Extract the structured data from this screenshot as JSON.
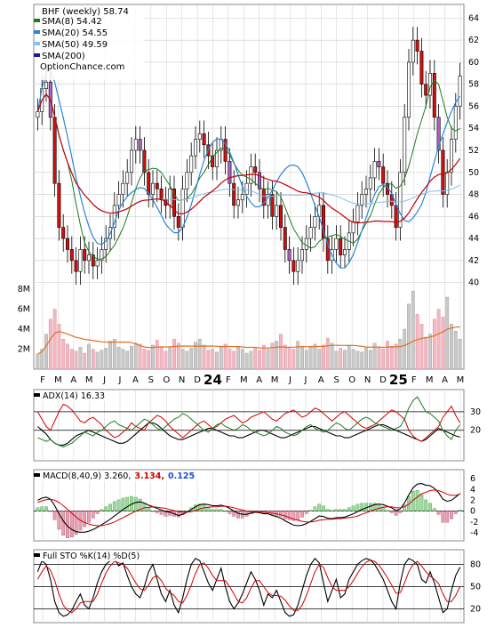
{
  "chart_data": [
    {
      "type": "candlestick",
      "panel": "price",
      "title": "BHF (weekly) 58.74",
      "watermark": "OptionChance.com",
      "legend": [
        {
          "label": "SMA(8) 54.42",
          "color": "#1f7a1f"
        },
        {
          "label": "SMA(20) 54.55",
          "color": "#2a86d8"
        },
        {
          "label": "SMA(50) 49.59",
          "color": "#7fc3f0"
        },
        {
          "label": "SMA(200)",
          "color": "#1a1aa0"
        }
      ],
      "legend_placement": "top-left",
      "yaxis_ticks": [
        40,
        42,
        44,
        46,
        48,
        50,
        52,
        54,
        56,
        58,
        60,
        62,
        64
      ],
      "ylim": [
        39,
        65
      ],
      "x_tick_labels": [
        "F",
        "M",
        "A",
        "M",
        "J",
        "J",
        "A",
        "S",
        "O",
        "N",
        "D",
        "24",
        "F",
        "M",
        "A",
        "M",
        "J",
        "J",
        "A",
        "S",
        "O",
        "N",
        "D",
        "25",
        "F",
        "M",
        "A",
        "M"
      ],
      "grid": true,
      "close": [
        55.5,
        57.6,
        58.2,
        55.0,
        49.0,
        45.0,
        44.0,
        43.0,
        42.0,
        41.0,
        43.0,
        42.0,
        42.5,
        41.5,
        42.0,
        43.0,
        44.0,
        45.0,
        47.0,
        48.0,
        49.0,
        50.0,
        52.0,
        53.0,
        52.0,
        50.0,
        48.0,
        49.0,
        48.5,
        47.5,
        47.0,
        48.5,
        46.0,
        45.0,
        48.5,
        50.0,
        51.5,
        53.0,
        53.5,
        52.5,
        51.5,
        50.5,
        52.0,
        53.0,
        51.0,
        49.0,
        47.0,
        47.5,
        48.0,
        49.0,
        50.5,
        50.0,
        48.5,
        47.0,
        48.0,
        46.0,
        47.0,
        45.0,
        43.0,
        42.0,
        41.0,
        42.0,
        43.0,
        44.0,
        45.0,
        46.0,
        47.0,
        44.0,
        42.0,
        43.0,
        44.0,
        42.5,
        43.0,
        44.5,
        45.5,
        47.0,
        48.0,
        48.5,
        49.5,
        51.0,
        50.5,
        49.0,
        48.0,
        47.0,
        45.0,
        50.0,
        55.0,
        60.0,
        62.0,
        61.0,
        58.0,
        57.0,
        59.0,
        55.0,
        52.0,
        48.0,
        50.0,
        53.0,
        56.0,
        58.74
      ],
      "series_labels": [
        "SMA(8) 54.42",
        "SMA(20) 54.55",
        "SMA(50) 49.59",
        "SMA(200)"
      ]
    },
    {
      "type": "bar",
      "panel": "volume",
      "yaxis_ticks": [
        "2M",
        "4M",
        "6M",
        "8M"
      ],
      "ylim_millions": [
        0,
        8
      ],
      "values_millions": [
        1.5,
        2.0,
        3.5,
        5.0,
        6.0,
        4.5,
        3.0,
        2.5,
        2.0,
        1.8,
        2.2,
        1.6,
        2.5,
        2.0,
        1.7,
        1.9,
        2.1,
        2.8,
        3.0,
        2.2,
        2.0,
        1.8,
        2.3,
        2.6,
        2.5,
        2.0,
        1.9,
        2.4,
        2.9,
        2.2,
        1.8,
        2.2,
        3.0,
        2.6,
        2.0,
        1.8,
        2.1,
        2.7,
        3.0,
        2.4,
        1.9,
        2.0,
        1.7,
        2.2,
        2.5,
        2.0,
        1.8,
        2.3,
        2.0,
        1.6,
        1.8,
        2.2,
        1.9,
        2.4,
        2.0,
        2.6,
        2.8,
        3.5,
        2.4,
        2.2,
        2.0,
        2.8,
        2.2,
        1.9,
        2.3,
        2.5,
        2.0,
        2.4,
        3.1,
        2.6,
        1.8,
        2.1,
        1.9,
        2.4,
        2.0,
        1.8,
        1.7,
        2.1,
        1.9,
        2.6,
        2.2,
        2.0,
        2.8,
        2.3,
        2.5,
        3.0,
        4.0,
        6.5,
        7.8,
        5.5,
        4.5,
        3.2,
        3.5,
        5.0,
        6.0,
        5.2,
        7.2,
        4.5,
        3.8,
        3.0
      ]
    },
    {
      "type": "line",
      "panel": "ADX",
      "label": "ADX(14) 16.33",
      "yaxis_ticks": [
        20,
        30
      ],
      "ylim": [
        5,
        40
      ],
      "series": [
        {
          "color": "#000000",
          "values": [
            22,
            20,
            18,
            15,
            13,
            12,
            12,
            13,
            15,
            17,
            18,
            19,
            20,
            19,
            18,
            17,
            16,
            15,
            14,
            13,
            13,
            14,
            16,
            18,
            20,
            22,
            24,
            24,
            23,
            21,
            19,
            17,
            16,
            15,
            15,
            16,
            17,
            18,
            19,
            20,
            21,
            21,
            20,
            19,
            18,
            17,
            17,
            16,
            16,
            17,
            18,
            19,
            20,
            20,
            19,
            18,
            17,
            16,
            16,
            17,
            18,
            19,
            20,
            21,
            22,
            22,
            21,
            20,
            19,
            18,
            17,
            17,
            16,
            16,
            17,
            18,
            19,
            20,
            21,
            22,
            23,
            23,
            22,
            21,
            20,
            19,
            18,
            17,
            16,
            15,
            14,
            15,
            17,
            19,
            21,
            20,
            19,
            18,
            17,
            16.33
          ]
        },
        {
          "color": "#d00000",
          "values": [
            30,
            26,
            22,
            20,
            25,
            30,
            34,
            33,
            31,
            28,
            25,
            24,
            26,
            27,
            25,
            23,
            20,
            18,
            16,
            17,
            19,
            21,
            24,
            22,
            21,
            20,
            24,
            26,
            28,
            27,
            25,
            22,
            20,
            18,
            16,
            18,
            20,
            22,
            24,
            25,
            23,
            21,
            22,
            24,
            26,
            27,
            28,
            26,
            24,
            25,
            27,
            28,
            29,
            30,
            28,
            26,
            25,
            27,
            29,
            30,
            31,
            29,
            27,
            28,
            30,
            32,
            31,
            29,
            27,
            25,
            27,
            29,
            30,
            28,
            26,
            24,
            22,
            21,
            22,
            23,
            25,
            27,
            29,
            31,
            30,
            28,
            26,
            20,
            17,
            15,
            14,
            16,
            18,
            20,
            22,
            27,
            30,
            33,
            28,
            24
          ]
        },
        {
          "color": "#1f7a1f",
          "values": [
            16,
            15,
            14,
            15,
            13,
            12,
            11,
            12,
            13,
            15,
            17,
            19,
            18,
            17,
            19,
            20,
            22,
            24,
            25,
            23,
            22,
            21,
            20,
            22,
            24,
            26,
            25,
            23,
            21,
            20,
            22,
            24,
            26,
            27,
            29,
            28,
            26,
            24,
            22,
            20,
            19,
            21,
            23,
            24,
            22,
            21,
            20,
            21,
            23,
            22,
            20,
            19,
            18,
            17,
            18,
            20,
            22,
            21,
            19,
            18,
            17,
            18,
            20,
            22,
            23,
            21,
            20,
            19,
            20,
            22,
            24,
            23,
            21,
            20,
            22,
            24,
            26,
            27,
            26,
            24,
            23,
            22,
            21,
            20,
            21,
            22,
            26,
            32,
            36,
            38,
            34,
            30,
            29,
            27,
            25,
            20,
            17,
            15,
            20,
            23
          ]
        }
      ]
    },
    {
      "type": "line",
      "panel": "MACD",
      "label": "MACD(8,40,9) 3.260,",
      "signal_label": "3.134,",
      "histogram_label": "0.125",
      "yaxis_ticks": [
        -4,
        -2,
        0,
        2,
        4,
        6
      ],
      "ylim": [
        -5,
        7
      ],
      "macd": [
        2.0,
        2.4,
        2.6,
        2.2,
        1.0,
        -0.5,
        -1.8,
        -2.8,
        -3.4,
        -3.8,
        -3.9,
        -3.9,
        -3.7,
        -3.4,
        -3.0,
        -2.5,
        -2.0,
        -1.5,
        -0.9,
        -0.3,
        0.3,
        0.8,
        1.3,
        1.6,
        1.7,
        1.5,
        1.1,
        0.8,
        0.5,
        0.2,
        -0.1,
        -0.2,
        -0.5,
        -0.8,
        -0.6,
        -0.2,
        0.3,
        0.8,
        1.2,
        1.3,
        1.2,
        1.0,
        1.0,
        1.1,
        0.9,
        0.5,
        0.0,
        -0.4,
        -0.6,
        -0.6,
        -0.4,
        -0.2,
        -0.3,
        -0.5,
        -0.5,
        -0.8,
        -1.0,
        -1.3,
        -1.8,
        -2.2,
        -2.6,
        -2.7,
        -2.6,
        -2.3,
        -1.9,
        -1.4,
        -0.9,
        -1.0,
        -1.3,
        -1.4,
        -1.2,
        -1.2,
        -1.1,
        -0.8,
        -0.5,
        -0.1,
        0.3,
        0.6,
        0.9,
        1.2,
        1.3,
        1.2,
        0.9,
        0.6,
        0.1,
        0.4,
        1.5,
        3.0,
        4.3,
        5.0,
        5.1,
        4.8,
        4.7,
        4.2,
        3.4,
        2.2,
        1.8,
        2.0,
        2.6,
        3.26
      ],
      "signal": [
        1.6,
        1.9,
        2.1,
        2.2,
        2.0,
        1.6,
        1.0,
        0.3,
        -0.4,
        -1.1,
        -1.7,
        -2.1,
        -2.4,
        -2.6,
        -2.7,
        -2.7,
        -2.5,
        -2.3,
        -2.0,
        -1.6,
        -1.2,
        -0.8,
        -0.4,
        0.0,
        0.3,
        0.6,
        0.7,
        0.8,
        0.7,
        0.6,
        0.5,
        0.3,
        0.1,
        -0.1,
        -0.2,
        -0.2,
        -0.1,
        0.1,
        0.4,
        0.6,
        0.7,
        0.8,
        0.8,
        0.9,
        0.9,
        0.8,
        0.6,
        0.4,
        0.2,
        0.0,
        -0.1,
        -0.1,
        -0.2,
        -0.2,
        -0.3,
        -0.4,
        -0.5,
        -0.7,
        -0.9,
        -1.2,
        -1.5,
        -1.7,
        -1.9,
        -2.0,
        -2.0,
        -1.9,
        -1.7,
        -1.6,
        -1.5,
        -1.5,
        -1.4,
        -1.4,
        -1.3,
        -1.2,
        -1.1,
        -0.9,
        -0.6,
        -0.3,
        0.0,
        0.3,
        0.5,
        0.7,
        0.8,
        0.8,
        0.6,
        0.6,
        0.8,
        1.3,
        2.0,
        2.6,
        3.2,
        3.5,
        3.8,
        3.9,
        3.8,
        3.5,
        3.1,
        2.9,
        2.9,
        3.134
      ]
    },
    {
      "type": "line",
      "panel": "Stochastic",
      "label": "Full STO %K(14) %D(5)",
      "yaxis_ticks": [
        20,
        50,
        80
      ],
      "ylim": [
        5,
        95
      ],
      "k": [
        70,
        85,
        80,
        60,
        30,
        15,
        10,
        12,
        18,
        30,
        40,
        25,
        20,
        35,
        55,
        70,
        80,
        85,
        88,
        78,
        82,
        65,
        50,
        40,
        35,
        50,
        70,
        80,
        60,
        40,
        30,
        45,
        25,
        15,
        35,
        60,
        80,
        88,
        85,
        70,
        55,
        45,
        60,
        75,
        50,
        30,
        20,
        28,
        40,
        55,
        70,
        60,
        45,
        25,
        40,
        35,
        45,
        30,
        15,
        10,
        12,
        25,
        45,
        65,
        80,
        88,
        82,
        55,
        30,
        45,
        60,
        35,
        40,
        60,
        70,
        80,
        85,
        88,
        86,
        80,
        70,
        60,
        45,
        30,
        20,
        55,
        80,
        88,
        85,
        80,
        60,
        55,
        70,
        55,
        35,
        15,
        20,
        45,
        65,
        76
      ],
      "d": [
        60,
        70,
        78,
        72,
        58,
        40,
        25,
        18,
        15,
        20,
        28,
        30,
        30,
        30,
        40,
        55,
        68,
        78,
        84,
        82,
        80,
        75,
        65,
        55,
        47,
        45,
        52,
        62,
        65,
        58,
        48,
        42,
        38,
        30,
        28,
        38,
        52,
        68,
        80,
        82,
        75,
        65,
        58,
        58,
        58,
        50,
        40,
        30,
        28,
        35,
        48,
        58,
        58,
        50,
        42,
        38,
        38,
        37,
        32,
        24,
        18,
        18,
        25,
        38,
        54,
        70,
        80,
        76,
        62,
        50,
        45,
        45,
        45,
        50,
        58,
        68,
        77,
        83,
        86,
        84,
        79,
        71,
        62,
        52,
        41,
        42,
        55,
        70,
        80,
        84,
        78,
        70,
        64,
        60,
        54,
        40,
        30,
        30,
        38,
        50
      ]
    }
  ]
}
